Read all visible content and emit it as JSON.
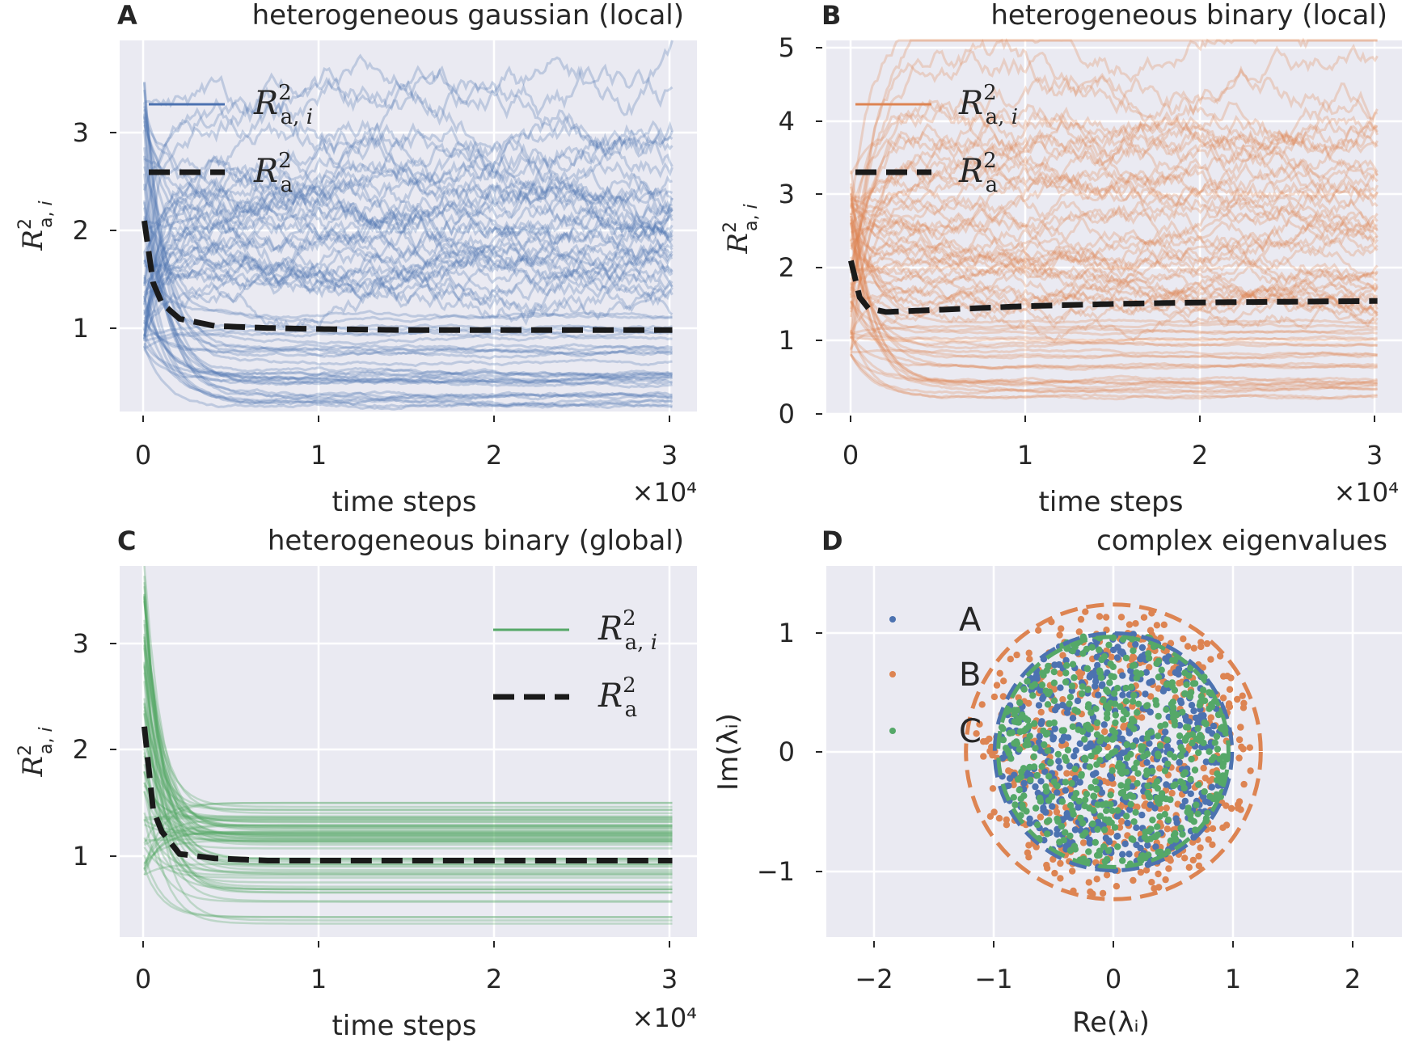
{
  "colors": {
    "blue": "#4c72b0",
    "orange": "#dd8452",
    "green": "#55a868",
    "dashed": "#1a1a1a",
    "axes_bg": "#eaeaf2",
    "grid": "#ffffff"
  },
  "chart_data": [
    {
      "id": "A",
      "type": "line",
      "panel_label": "A",
      "title": "heterogeneous gaussian (local)",
      "xlabel": "time steps",
      "ylabel": "R²_{a,i}",
      "x_multiplier": "×10⁴",
      "xlim": [
        -0.14,
        3.14
      ],
      "ylim": [
        0.25,
        3.85
      ],
      "xticks": [
        "0",
        "1",
        "2",
        "3"
      ],
      "yticks": [
        "1",
        "2",
        "3"
      ],
      "legend": [
        "R²_{a,i}",
        "R²_a"
      ],
      "legend_position": "upper-left",
      "mean_curve": {
        "name": "R²_a",
        "x": [
          0,
          0.05,
          0.1,
          0.2,
          0.4,
          0.7,
          1,
          1.5,
          2,
          2.5,
          3
        ],
        "y": [
          2.1,
          1.5,
          1.3,
          1.15,
          1.08,
          1.06,
          1.05,
          1.04,
          1.04,
          1.04,
          1.04
        ]
      },
      "per_unit_final_values": [
        3.25,
        2.8,
        2.55,
        2.4,
        2.3,
        2.15,
        2.0,
        1.75,
        1.7,
        1.65,
        1.55,
        1.45,
        1.4,
        1.3,
        1.2,
        1.1,
        1.0,
        0.9,
        0.8,
        0.7,
        0.6,
        0.5,
        0.4,
        0.32
      ],
      "per_unit_start_values": [
        3.4,
        3.0,
        2.6,
        2.2,
        1.8,
        1.5,
        1.3,
        1.1,
        0.95
      ]
    },
    {
      "id": "B",
      "type": "line",
      "panel_label": "B",
      "title": "heterogeneous binary (local)",
      "xlabel": "time steps",
      "ylabel": "R²_{a,i}",
      "x_multiplier": "×10⁴",
      "xlim": [
        -0.14,
        3.14
      ],
      "ylim": [
        0,
        5.1
      ],
      "xticks": [
        "0",
        "1",
        "2",
        "3"
      ],
      "yticks": [
        "0",
        "1",
        "2",
        "3",
        "4",
        "5"
      ],
      "legend": [
        "R²_{a,i}",
        "R²_a"
      ],
      "legend_position": "upper-left",
      "mean_curve": {
        "name": "R²_a",
        "x": [
          0,
          0.05,
          0.1,
          0.2,
          0.4,
          0.7,
          1,
          1.5,
          2,
          2.5,
          3
        ],
        "y": [
          2.1,
          1.6,
          1.45,
          1.4,
          1.42,
          1.45,
          1.48,
          1.51,
          1.53,
          1.54,
          1.55
        ]
      },
      "per_unit_final_values": [
        4.9,
        4.3,
        4.0,
        3.7,
        3.5,
        3.0,
        2.7,
        2.6,
        2.2,
        2.0,
        1.85,
        1.6,
        1.4,
        1.2,
        1.0,
        0.85,
        0.7,
        0.55,
        0.45,
        0.35,
        0.25
      ],
      "per_unit_start_values": [
        3.2,
        2.9,
        2.6,
        2.3,
        2.0,
        1.7,
        1.4,
        1.1,
        0.9
      ]
    },
    {
      "id": "C",
      "type": "line",
      "panel_label": "C",
      "title": "heterogeneous binary (global)",
      "xlabel": "time steps",
      "ylabel": "R²_{a,i}",
      "x_multiplier": "×10⁴",
      "xlim": [
        -0.14,
        3.14
      ],
      "ylim": [
        0.25,
        3.6
      ],
      "xticks": [
        "0",
        "1",
        "2",
        "3"
      ],
      "yticks": [
        "1",
        "2",
        "3"
      ],
      "legend": [
        "R²_{a,i}",
        "R²_a"
      ],
      "legend_position": "upper-right",
      "mean_curve": {
        "name": "R²_a",
        "x": [
          0,
          0.05,
          0.1,
          0.2,
          0.4,
          0.7,
          1,
          1.5,
          2,
          2.5,
          3
        ],
        "y": [
          2.15,
          1.4,
          1.2,
          1.0,
          0.96,
          0.94,
          0.94,
          0.94,
          0.94,
          0.94,
          0.94
        ]
      },
      "per_unit_final_values": [
        1.53,
        1.4,
        1.35,
        1.3,
        1.25,
        1.2,
        1.15,
        1.1,
        1.05,
        1.0,
        0.95,
        0.9,
        0.85,
        0.8,
        0.75,
        0.7,
        0.65,
        0.6,
        0.5,
        0.4
      ],
      "per_unit_start_values": [
        3.5,
        3.2,
        2.9,
        2.6,
        2.3,
        2.0,
        1.7,
        1.4,
        1.1,
        0.9
      ]
    },
    {
      "id": "D",
      "type": "scatter",
      "panel_label": "D",
      "title": "complex eigenvalues",
      "xlabel": "Re(λᵢ)",
      "ylabel": "Im(λᵢ)",
      "xlim": [
        -2.5,
        2.5
      ],
      "ylim": [
        -1.55,
        1.55
      ],
      "xticks": [
        "−2",
        "−1",
        "0",
        "1",
        "2"
      ],
      "yticks": [
        "−1",
        "0",
        "1"
      ],
      "legend": [
        "A",
        "B",
        "C"
      ],
      "legend_position": "upper-left",
      "series": [
        {
          "name": "A",
          "radius": 1.0,
          "circle_radius": 1.03
        },
        {
          "name": "B",
          "radius": 1.22,
          "circle_radius": 1.28
        },
        {
          "name": "C",
          "radius": 1.0,
          "circle_radius": 1.0
        }
      ]
    }
  ]
}
